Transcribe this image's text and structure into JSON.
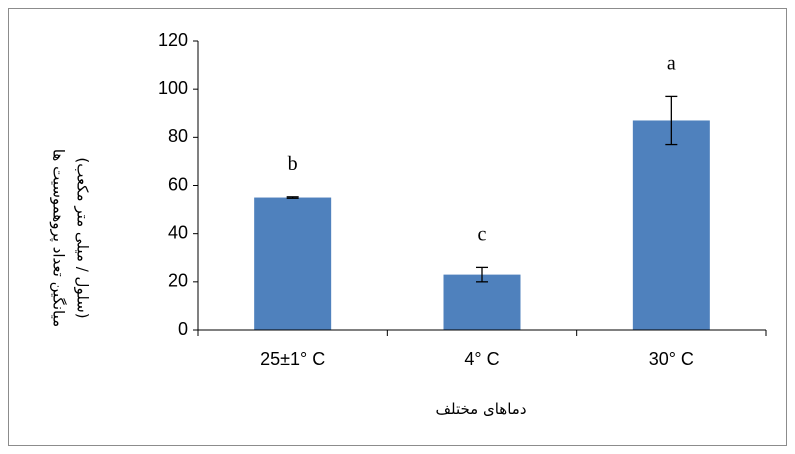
{
  "chart_data": {
    "type": "bar",
    "categories": [
      "25±1° C",
      "4° C",
      "30° C"
    ],
    "values": [
      55,
      23,
      87
    ],
    "error": [
      0.3,
      3,
      10
    ],
    "significance": [
      "b",
      "c",
      "a"
    ],
    "xlabel": "دماهای مختلف",
    "ylabel_line1": "میانگین تعداد پروهموسیت ها",
    "ylabel_line2": "(سلول / میلی متر مکعب)",
    "ylim": [
      0,
      120
    ],
    "yticks": [
      0,
      20,
      40,
      60,
      80,
      100,
      120
    ],
    "bar_color": "#4f81bd",
    "grid": false,
    "legend": "none"
  }
}
